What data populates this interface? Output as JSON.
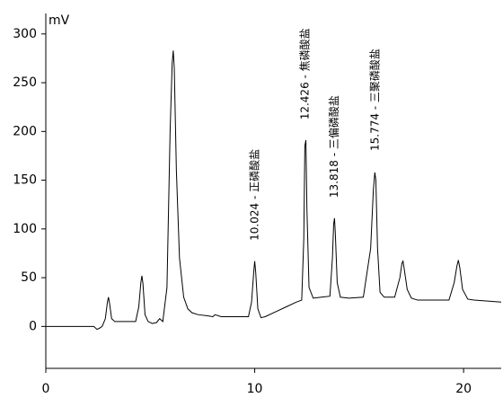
{
  "chart_data": {
    "type": "line",
    "ylabel": "mV",
    "color": "#000000",
    "x": [
      0,
      2.3,
      2.45,
      2.55,
      2.7,
      2.85,
      2.95,
      3.0,
      3.05,
      3.15,
      3.3,
      3.6,
      4.3,
      4.45,
      4.55,
      4.6,
      4.65,
      4.75,
      4.9,
      5.1,
      5.3,
      5.45,
      5.6,
      5.8,
      5.95,
      6.05,
      6.1,
      6.15,
      6.25,
      6.4,
      6.6,
      6.8,
      7.0,
      7.3,
      7.7,
      8.0,
      8.1,
      8.4,
      9.0,
      9.7,
      9.85,
      9.95,
      10.0,
      10.05,
      10.15,
      10.3,
      10.5,
      11.0,
      11.5,
      12.0,
      12.25,
      12.35,
      12.4,
      12.45,
      12.5,
      12.6,
      12.8,
      13.2,
      13.6,
      13.72,
      13.78,
      13.82,
      13.86,
      13.95,
      14.1,
      14.5,
      15.2,
      15.55,
      15.68,
      15.75,
      15.8,
      15.88,
      16.0,
      16.2,
      16.7,
      16.95,
      17.05,
      17.1,
      17.15,
      17.3,
      17.5,
      17.8,
      19.3,
      19.55,
      19.68,
      19.75,
      19.82,
      19.95,
      20.2,
      20.5,
      21.8
    ],
    "values": [
      0,
      0,
      -3,
      -2,
      0,
      8,
      25,
      30,
      24,
      8,
      5,
      5,
      5,
      20,
      45,
      52,
      44,
      12,
      5,
      3,
      4,
      8,
      5,
      40,
      200,
      270,
      283,
      265,
      160,
      70,
      30,
      18,
      14,
      12,
      11,
      10,
      12,
      10,
      10,
      10,
      25,
      55,
      67,
      55,
      18,
      9,
      10,
      15,
      20,
      25,
      27,
      90,
      185,
      191,
      120,
      40,
      29,
      30,
      31,
      70,
      105,
      111,
      95,
      45,
      30,
      29,
      30,
      80,
      140,
      158,
      150,
      80,
      35,
      30,
      30,
      50,
      65,
      67,
      60,
      38,
      29,
      27,
      27,
      45,
      62,
      68,
      60,
      38,
      28,
      27,
      25
    ],
    "xlim": [
      0,
      21.8
    ],
    "ylim": [
      -43,
      321
    ],
    "xticks": [
      0,
      10,
      20
    ],
    "yticks": [
      0,
      50,
      100,
      150,
      200,
      250,
      300
    ],
    "annotations": [
      {
        "text": "10.024 - 正磷酸盐",
        "x": 10.024,
        "y": 88,
        "color": "#c00000"
      },
      {
        "text": "12.426 - 焦磷酸盐",
        "x": 12.426,
        "y": 212,
        "color": "#000000"
      },
      {
        "text": "13.818 - 三偏磷酸盐",
        "x": 13.818,
        "y": 132,
        "color": "#000000"
      },
      {
        "text": "15.774 - 三聚磷酸盐",
        "x": 15.774,
        "y": 180,
        "color": "#000000"
      }
    ]
  }
}
